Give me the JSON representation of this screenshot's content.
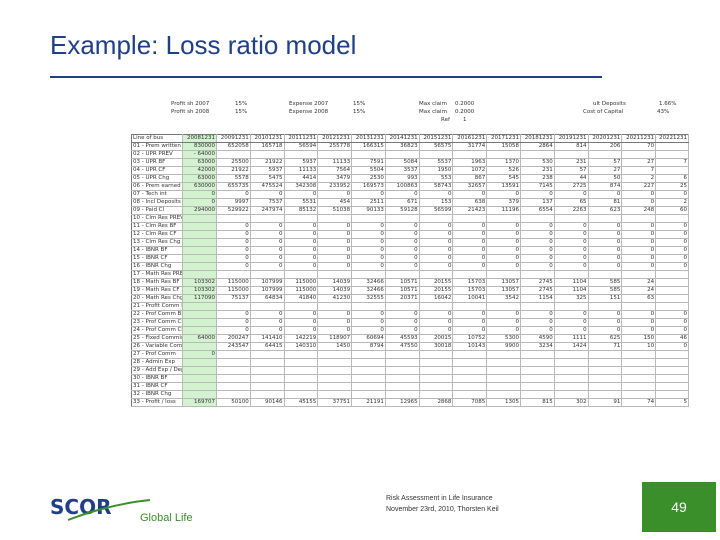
{
  "slide": {
    "title": "Example: Loss ratio model",
    "footer_line1": "Risk Assessment in Life Insurance",
    "footer_line2": "November 23rd, 2010, Thorsten Keil",
    "page_number": "49",
    "logo_text": "SCOR",
    "logo_subtext": "Global Life",
    "accent_color": "#1f3f86",
    "green_color": "#3a8f2a"
  },
  "params": {
    "p1_label": "Profit sh 2007",
    "p1_value": "15%",
    "p2_label": "Profit sh 2008",
    "p2_value": "15%",
    "p3_label": "Expense 2007",
    "p3_value": "15%",
    "p4_label": "Expense 2008",
    "p4_value": "15%",
    "p5_label": "Max claim",
    "p5_value": "0.2000",
    "p6_label": "Max claim",
    "p6_value": "0.2000",
    "p7_label": "Ref",
    "p7_value": "1",
    "p8_label": "ult Deposits",
    "p8_value": "1.66%",
    "p9_label": "Cost of Capital",
    "p9_value": "43%"
  },
  "sheet": {
    "header": [
      "Line of bus",
      "20081231",
      "20091231",
      "20101231",
      "20111231",
      "20121231",
      "20131231",
      "20141231",
      "20151231",
      "20161231",
      "20171231",
      "20181231",
      "20191231",
      "20201231",
      "20211231",
      "20221231"
    ],
    "rows": [
      [
        "01 - Prem written",
        "830000",
        "652058",
        "165718",
        "56594",
        "255778",
        "166315",
        "36823",
        "56575",
        "31774",
        "15058",
        "2864",
        "814",
        "206",
        "70",
        ""
      ],
      [
        "02 - UPR PREV",
        "- 64000",
        "",
        "",
        "",
        "",
        "",
        "",
        "",
        "",
        "",
        "",
        "",
        "",
        "",
        ""
      ],
      [
        "03 - UPR BF",
        "63000",
        "25500",
        "21922",
        "5937",
        "11133",
        "7591",
        "5084",
        "5537",
        "1963",
        "1370",
        "530",
        "231",
        "57",
        "27",
        "7"
      ],
      [
        "04 - UPR CF",
        "42000",
        "21922",
        "5937",
        "11133",
        "7564",
        "5504",
        "3537",
        "1950",
        "1072",
        "526",
        "231",
        "57",
        "27",
        "7",
        ""
      ],
      [
        "05 - UPR Chg",
        "63000",
        "5578",
        "5475",
        "4414",
        "3479",
        "2530",
        "993",
        "553",
        "867",
        "545",
        "238",
        "44",
        "50",
        "2",
        "6"
      ],
      [
        "06 - Prem earned",
        "630000",
        "655735",
        "475524",
        "342308",
        "233952",
        "169573",
        "100863",
        "58743",
        "32657",
        "13591",
        "7145",
        "2725",
        "874",
        "227",
        "25"
      ],
      [
        "07 - Tech int",
        "0",
        "0",
        "0",
        "0",
        "0",
        "0",
        "0",
        "0",
        "0",
        "0",
        "0",
        "0",
        "0",
        "0",
        "0"
      ],
      [
        "08 - Incl Deposits",
        "0",
        "9997",
        "7537",
        "5531",
        "454",
        "2511",
        "671",
        "153",
        "638",
        "379",
        "137",
        "65",
        "81",
        "0",
        "2"
      ],
      [
        "09 - Paid Cl",
        "294000",
        "529922",
        "247974",
        "85132",
        "51038",
        "90133",
        "59128",
        "56599",
        "21423",
        "11196",
        "6554",
        "2263",
        "623",
        "248",
        "60"
      ],
      [
        "10 - Clm Res PREV",
        "",
        "",
        "",
        "",
        "",
        "",
        "",
        "",
        "",
        "",
        "",
        "",
        "",
        "",
        ""
      ],
      [
        "11 - Clm Res BF",
        "",
        "0",
        "0",
        "0",
        "0",
        "0",
        "0",
        "0",
        "0",
        "0",
        "0",
        "0",
        "0",
        "0",
        "0"
      ],
      [
        "12 - Clm Res CF",
        "",
        "0",
        "0",
        "0",
        "0",
        "0",
        "0",
        "0",
        "0",
        "0",
        "0",
        "0",
        "0",
        "0",
        "0"
      ],
      [
        "13 - Clm Res Chg",
        "",
        "0",
        "0",
        "0",
        "0",
        "0",
        "0",
        "0",
        "0",
        "0",
        "0",
        "0",
        "0",
        "0",
        "0"
      ],
      [
        "14 - IBNR BF",
        "",
        "0",
        "0",
        "0",
        "0",
        "0",
        "0",
        "0",
        "0",
        "0",
        "0",
        "0",
        "0",
        "0",
        "0"
      ],
      [
        "15 - IBNR CF",
        "",
        "0",
        "0",
        "0",
        "0",
        "0",
        "0",
        "0",
        "0",
        "0",
        "0",
        "0",
        "0",
        "0",
        "0"
      ],
      [
        "16 - IBNR Chg",
        "",
        "0",
        "0",
        "0",
        "0",
        "0",
        "0",
        "0",
        "0",
        "0",
        "0",
        "0",
        "0",
        "0",
        "0"
      ],
      [
        "17 - Math Res PREV",
        "",
        "",
        "",
        "",
        "",
        "",
        "",
        "",
        "",
        "",
        "",
        "",
        "",
        "",
        ""
      ],
      [
        "18 - Math Res BF",
        "103302",
        "115000",
        "107999",
        "115000",
        "14039",
        "32466",
        "10571",
        "20155",
        "15703",
        "13057",
        "2745",
        "1104",
        "585",
        "24",
        ""
      ],
      [
        "19 - Math Res CF",
        "103302",
        "115000",
        "107999",
        "115000",
        "14039",
        "32466",
        "10571",
        "20155",
        "15703",
        "13057",
        "2745",
        "1104",
        "585",
        "24",
        ""
      ],
      [
        "20 - Math Res Chg",
        "117090",
        "75137",
        "64834",
        "41840",
        "41230",
        "32555",
        "20371",
        "16042",
        "10041",
        "3542",
        "1154",
        "325",
        "151",
        "63",
        ""
      ],
      [
        "21 - Profit Comm PREV",
        "",
        "",
        "",
        "",
        "",
        "",
        "",
        "",
        "",
        "",
        "",
        "",
        "",
        "",
        ""
      ],
      [
        "22 - Prof Comm BF",
        "",
        "0",
        "0",
        "0",
        "0",
        "0",
        "0",
        "0",
        "0",
        "0",
        "0",
        "0",
        "0",
        "0",
        "0"
      ],
      [
        "23 - Prof Comm CF",
        "",
        "0",
        "0",
        "0",
        "0",
        "0",
        "0",
        "0",
        "0",
        "0",
        "0",
        "0",
        "0",
        "0",
        "0"
      ],
      [
        "24 - Prof Comm Chg",
        "",
        "0",
        "0",
        "0",
        "0",
        "0",
        "0",
        "0",
        "0",
        "0",
        "0",
        "0",
        "0",
        "0",
        "0"
      ],
      [
        "25 - Fixed Commission",
        "64000",
        "200247",
        "141410",
        "142219",
        "118907",
        "60694",
        "45593",
        "20015",
        "10752",
        "5300",
        "4590",
        "1111",
        "625",
        "150",
        "46"
      ],
      [
        "26 - Variable Comm",
        "",
        "243547",
        "64415",
        "140310",
        "1450",
        "8794",
        "47550",
        "30018",
        "10143",
        "9900",
        "3234",
        "1424",
        "71",
        "10",
        "0"
      ],
      [
        "27 - Prof Comm",
        "0",
        "",
        "",
        "",
        "",
        "",
        "",
        "",
        "",
        "",
        "",
        "",
        "",
        "",
        ""
      ],
      [
        "28 - Admin Exp",
        "",
        "",
        "",
        "",
        "",
        "",
        "",
        "",
        "",
        "",
        "",
        "",
        "",
        "",
        ""
      ],
      [
        "29 - Add Exp / Dep",
        "",
        "",
        "",
        "",
        "",
        "",
        "",
        "",
        "",
        "",
        "",
        "",
        "",
        "",
        ""
      ],
      [
        "30 - IBNR BF",
        "",
        "",
        "",
        "",
        "",
        "",
        "",
        "",
        "",
        "",
        "",
        "",
        "",
        "",
        ""
      ],
      [
        "31 - IBNR CF",
        "",
        "",
        "",
        "",
        "",
        "",
        "",
        "",
        "",
        "",
        "",
        "",
        "",
        "",
        ""
      ],
      [
        "32 - IBNR Chg",
        "",
        "",
        "",
        "",
        "",
        "",
        "",
        "",
        "",
        "",
        "",
        "",
        "",
        "",
        ""
      ],
      [
        "33 - Profit / loss",
        "169707",
        "50100",
        "90146",
        "45155",
        "37751",
        "21191",
        "12965",
        "2868",
        "7085",
        "1305",
        "815",
        "302",
        "91",
        "74",
        "5"
      ]
    ]
  }
}
